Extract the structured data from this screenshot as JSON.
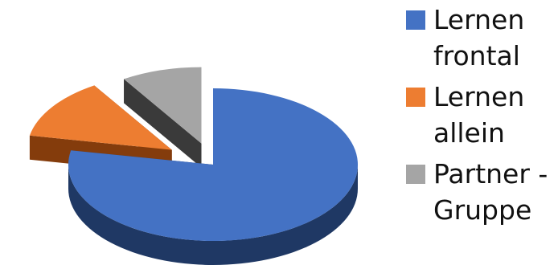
{
  "chart_data": {
    "type": "pie",
    "style": "3d-exploded",
    "title": "",
    "legend_position": "right",
    "categories": [
      "Lernen frontal",
      "Lernen allein",
      "Partner - Gruppe"
    ],
    "values": [
      78,
      13,
      9
    ],
    "colors": {
      "top": [
        "#4472C4",
        "#ED7D31",
        "#A5A5A5"
      ],
      "side": [
        "#1F3864",
        "#843C0C",
        "#3A3A3A"
      ]
    },
    "legend": [
      {
        "label": "Lernen frontal",
        "color": "#4472C4"
      },
      {
        "label": "Lernen allein",
        "color": "#ED7D31"
      },
      {
        "label": "Partner - Gruppe",
        "color": "#A5A5A5"
      }
    ]
  }
}
